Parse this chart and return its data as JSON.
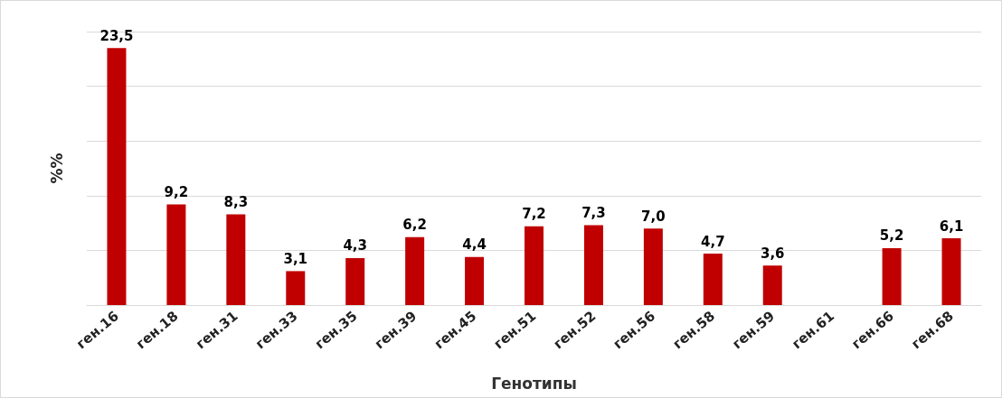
{
  "chart_data": {
    "type": "bar",
    "xlabel": "Генотипы",
    "ylabel": "%%",
    "categories": [
      "ген.16",
      "ген.18",
      "ген.31",
      "ген.33",
      "ген.35",
      "ген.39",
      "ген.45",
      "ген.51",
      "ген.52",
      "ген.56",
      "ген.58",
      "ген.59",
      "ген.61",
      "ген.66",
      "ген.68"
    ],
    "values": [
      23.5,
      9.2,
      8.3,
      3.1,
      4.3,
      6.2,
      4.4,
      7.2,
      7.3,
      7.0,
      4.7,
      3.6,
      null,
      5.2,
      6.1
    ],
    "value_labels": [
      "23,5",
      "9,2",
      "8,3",
      "3,1",
      "4,3",
      "6,2",
      "4,4",
      "7,2",
      "7,3",
      "7,0",
      "4,7",
      "3,6",
      null,
      "5,2",
      "6,1"
    ],
    "color": "#c00000",
    "ylim": [
      0,
      25
    ],
    "yticks": [
      {
        "value": 0,
        "label": null
      },
      {
        "value": 5,
        "label": null
      },
      {
        "value": 10,
        "label": null
      },
      {
        "value": 15,
        "label": null
      },
      {
        "value": 20,
        "label": null
      },
      {
        "value": 25,
        "label": null
      }
    ],
    "tick_labels": "x",
    "grid": "y"
  }
}
